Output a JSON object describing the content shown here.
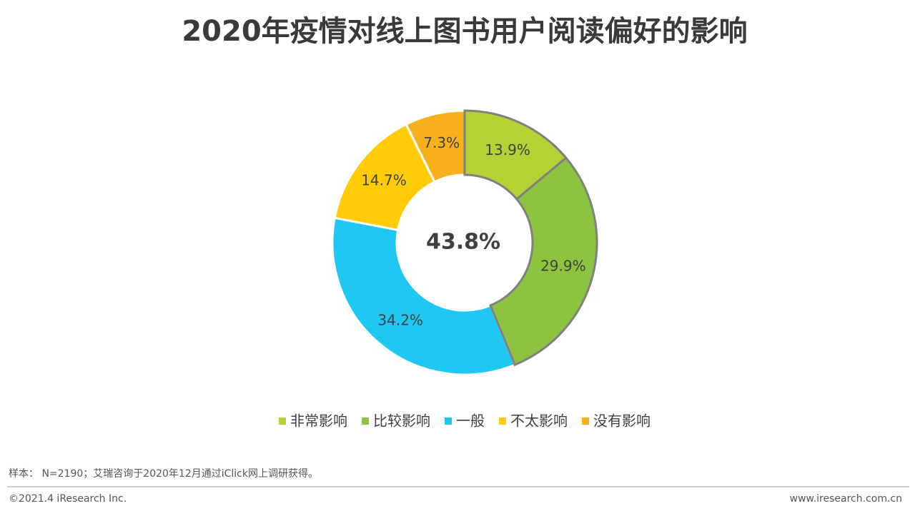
{
  "chart_data": {
    "type": "donut",
    "title": "2020年疫情对线上图书用户阅读偏好的影响",
    "categories": [
      "非常影响",
      "比较影响",
      "一般",
      "不太影响",
      "没有影响"
    ],
    "values": [
      13.9,
      29.9,
      34.2,
      14.7,
      7.3
    ],
    "value_labels": [
      "13.9%",
      "29.9%",
      "34.2%",
      "14.7%",
      "7.3%"
    ],
    "colors": [
      "#b3d234",
      "#8cc43f",
      "#1fc8f2",
      "#ffcb05",
      "#f7b11c"
    ],
    "outlined": [
      true,
      true,
      false,
      false,
      false
    ],
    "outline_color": "#808080",
    "center_label": "43.8%",
    "legend": "bottom"
  },
  "footer": {
    "note": "样本： N=2190；艾瑞咨询于2020年12月通过iClick网上调研获得。",
    "copyright": "©2021.4 iResearch Inc.",
    "website": "www.iresearch.com.cn"
  }
}
